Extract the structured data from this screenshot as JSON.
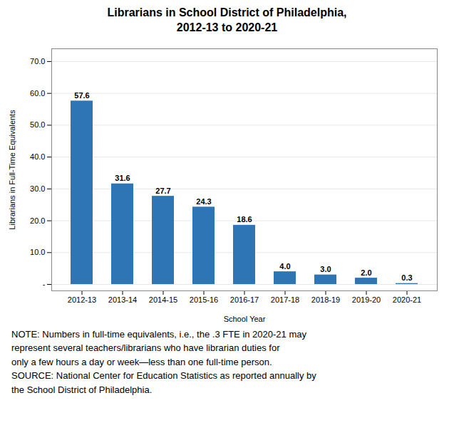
{
  "chart_data": {
    "type": "bar",
    "title": "Librarians in School District of Philadelphia,\n2012-13 to 2020-21",
    "categories": [
      "2012-13",
      "2013-14",
      "2014-15",
      "2015-16",
      "2016-17",
      "2017-18",
      "2018-19",
      "2019-20",
      "2020-21"
    ],
    "values": [
      57.6,
      31.6,
      27.7,
      24.3,
      18.6,
      4.0,
      3.0,
      2.0,
      0.3
    ],
    "value_labels": [
      "57.6",
      "31.6",
      "27.7",
      "24.3",
      "18.6",
      "4.0",
      "3.0",
      "2.0",
      "0.3"
    ],
    "color": "#2E75B6",
    "xlabel": "School Year",
    "ylabel": "Librarians in Full-Time Equivalents",
    "ylim": [
      -2,
      74
    ],
    "yticks": [
      {
        "value": 0,
        "label": "-"
      },
      {
        "value": 10,
        "label": "10.0"
      },
      {
        "value": 20,
        "label": "20.0"
      },
      {
        "value": 30,
        "label": "30.0"
      },
      {
        "value": 40,
        "label": "40.0"
      },
      {
        "value": 50,
        "label": "50.0"
      },
      {
        "value": 60,
        "label": "60.0"
      },
      {
        "value": 70,
        "label": "70.0"
      }
    ],
    "grid": true,
    "data_labels": true,
    "caption": "NOTE: Numbers in full-time equivalents, i.e., the .3 FTE in 2020-21 may\nrepresent several teachers/librarians who have librarian duties for\nonly a few hours a day or week—less than one full-time person.\nSOURCE: National Center for Education Statistics as reported annually by\nthe School District of Philadelphia."
  }
}
